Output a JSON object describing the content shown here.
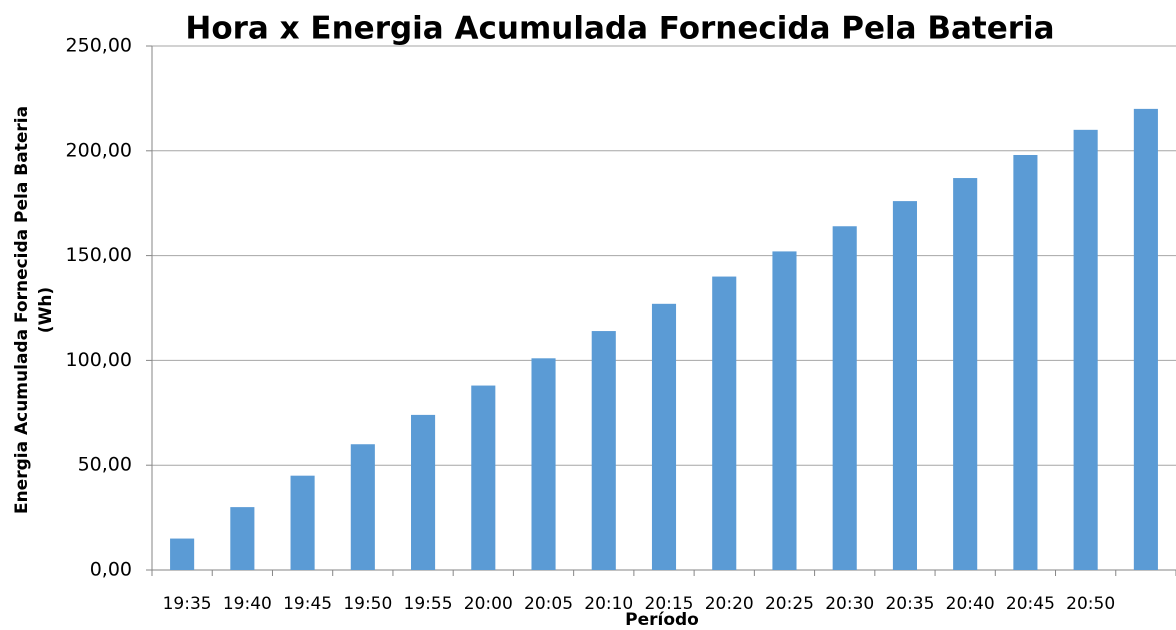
{
  "chart_data": {
    "type": "bar",
    "title": "Hora x Energia Acumulada Fornecida Pela Bateria",
    "x_label": "Período",
    "y_label": [
      "Energia Acumulada Fornecida Pela Bateria",
      "(Wh)"
    ],
    "categories": [
      "19:35",
      "19:40",
      "19:45",
      "19:50",
      "19:55",
      "20:00",
      "20:05",
      "20:10",
      "20:15",
      "20:20",
      "20:25",
      "20:30",
      "20:35",
      "20:40",
      "20:45",
      "20:50",
      null
    ],
    "values": [
      15,
      30,
      45,
      60,
      74,
      88,
      101,
      114,
      127,
      140,
      152,
      164,
      176,
      187,
      198,
      210,
      220
    ],
    "color": "#5b9bd5",
    "ylim": [
      0,
      250
    ],
    "yticks": [
      {
        "value": 0,
        "label": "0,00"
      },
      {
        "value": 50,
        "label": "50,00"
      },
      {
        "value": 100,
        "label": "100,00"
      },
      {
        "value": 150,
        "label": "150,00"
      },
      {
        "value": 200,
        "label": "200,00"
      },
      {
        "value": 250,
        "label": "250,00"
      }
    ],
    "grid": true
  }
}
